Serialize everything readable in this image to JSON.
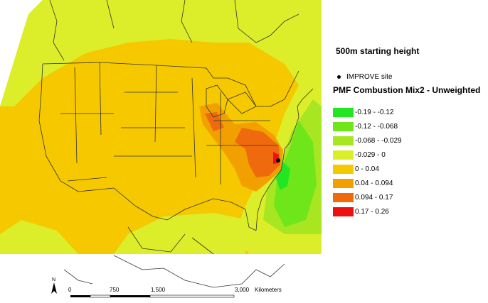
{
  "map": {
    "title": "500m starting height",
    "site_label": "IMPROVE site",
    "legend_title": "PMF Combustion Mix2 - Unweighted",
    "legend": [
      {
        "label": "-0.19 - -0.12",
        "color": "#22e622"
      },
      {
        "label": "-0.12 - -0.068",
        "color": "#6ee61a"
      },
      {
        "label": "-0.068 - -0.029",
        "color": "#a8e622"
      },
      {
        "label": "-0.029 - 0",
        "color": "#dcee2a"
      },
      {
        "label": "0 - 0.04",
        "color": "#f5c800"
      },
      {
        "label": "0.04 - 0.094",
        "color": "#f2a000"
      },
      {
        "label": "0.094 - 0.17",
        "color": "#ef6a0c"
      },
      {
        "label": "0.17 - 0.26",
        "color": "#ee1010"
      }
    ],
    "north_label": "N",
    "scale": {
      "ticks": [
        "0",
        "750",
        "1,500",
        "3,000"
      ],
      "unit": "Kilometers"
    }
  }
}
